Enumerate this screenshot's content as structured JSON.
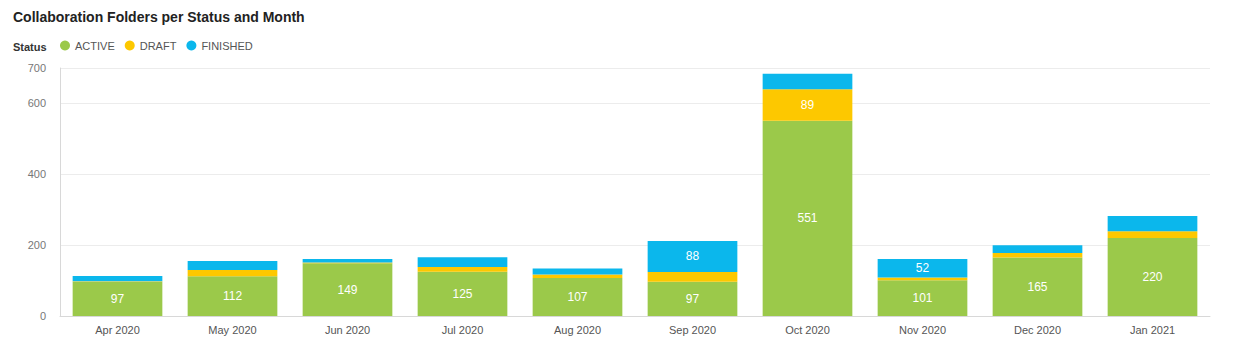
{
  "chart_data": {
    "type": "bar",
    "title": "Collaboration Folders per Status and Month",
    "legend_title": "Status",
    "legend": "top-left",
    "stacked": true,
    "data_labels": true,
    "grid": true,
    "categories": [
      "Apr 2020",
      "May 2020",
      "Jun 2020",
      "Jul 2020",
      "Aug 2020",
      "Sep 2020",
      "Oct 2020",
      "Nov 2020",
      "Dec 2020",
      "Jan 2021"
    ],
    "series": [
      {
        "name": "ACTIVE",
        "color": "#9bc94a",
        "values": [
          97,
          112,
          149,
          125,
          107,
          97,
          551,
          101,
          165,
          220
        ]
      },
      {
        "name": "DRAFT",
        "color": "#fdc800",
        "values": [
          1,
          18,
          2,
          13,
          10,
          27,
          89,
          8,
          13,
          19
        ],
        "value_labels": [
          null,
          null,
          null,
          null,
          null,
          null,
          "89",
          null,
          null,
          null
        ]
      },
      {
        "name": "FINISHED",
        "color": "#0bb7ec",
        "values": [
          15,
          25,
          10,
          28,
          17,
          88,
          44,
          52,
          22,
          43
        ],
        "value_labels": [
          null,
          null,
          null,
          null,
          null,
          "88",
          null,
          "52",
          null,
          null
        ]
      }
    ],
    "ylim": [
      0,
      700
    ],
    "yticks": [
      0,
      200,
      400,
      600
    ]
  }
}
